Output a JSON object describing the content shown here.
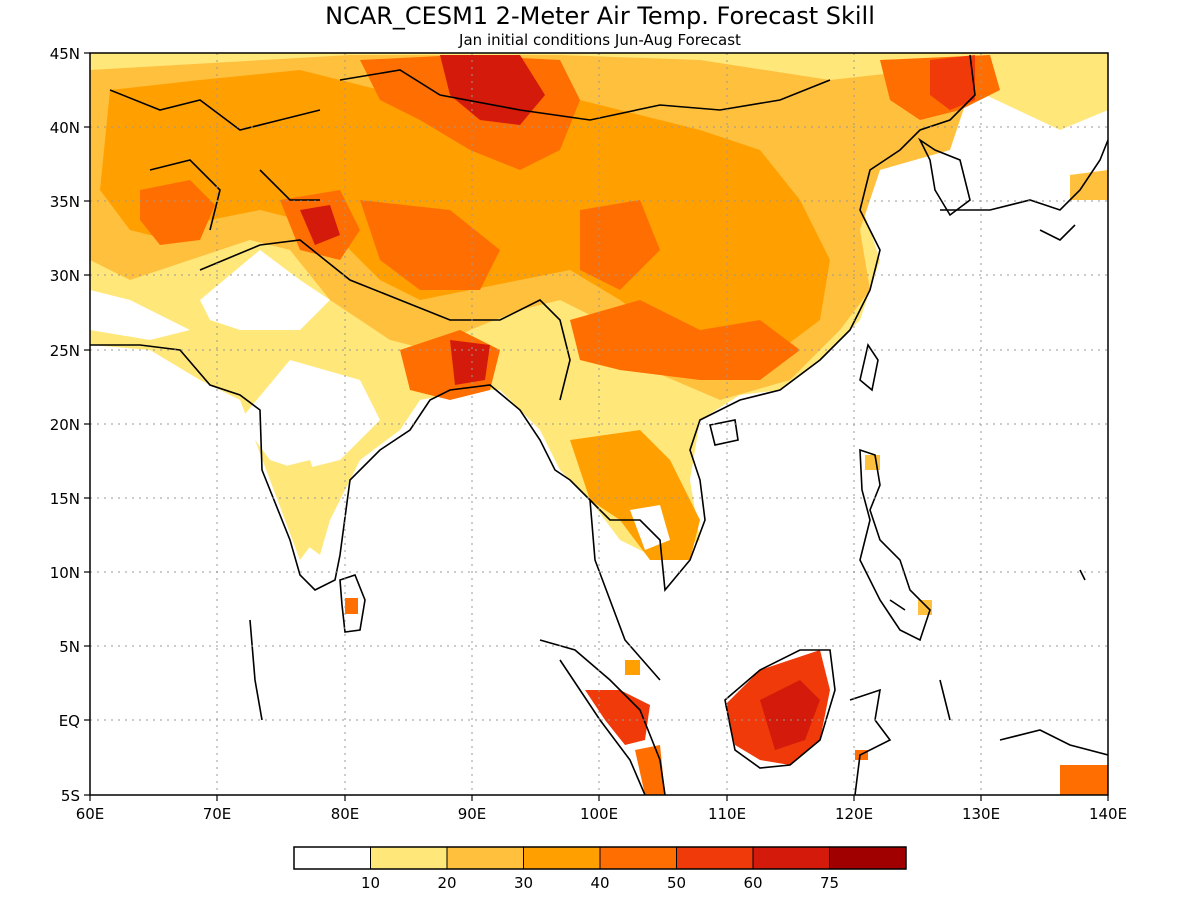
{
  "title": "NCAR_CESM1 2-Meter Air Temp. Forecast Skill",
  "subtitle": "Jan initial conditions  Jun-Aug Forecast",
  "map": {
    "lon_range": [
      60,
      140
    ],
    "lat_range": [
      -5,
      45
    ],
    "lon_ticks": [
      "60E",
      "70E",
      "80E",
      "90E",
      "100E",
      "110E",
      "120E",
      "130E",
      "140E"
    ],
    "lat_ticks": [
      "45N",
      "40N",
      "35N",
      "30N",
      "25N",
      "20N",
      "15N",
      "10N",
      "5N",
      "EQ",
      "5S"
    ],
    "grid": "dotted"
  },
  "colorbar": {
    "labels": [
      "10",
      "20",
      "30",
      "40",
      "50",
      "60",
      "75"
    ],
    "colors": [
      "#ffffff",
      "#ffe77a",
      "#ffc03e",
      "#ffa000",
      "#ff6e00",
      "#f03a0a",
      "#d41a0a",
      "#a00000"
    ]
  },
  "regions": [
    {
      "name": "central-asia",
      "fill": "#ffc03e"
    },
    {
      "name": "iran-plateau",
      "fill": "#ffa000"
    },
    {
      "name": "tibet-china",
      "fill": "#ffa000"
    },
    {
      "name": "mongolia-hotspot",
      "fill": "#d41a0a"
    },
    {
      "name": "himalaya-hotspot",
      "fill": "#d41a0a"
    },
    {
      "name": "bangladesh",
      "fill": "#ff6e00"
    },
    {
      "name": "north-india",
      "fill": "#ffe77a"
    },
    {
      "name": "indochina",
      "fill": "#ffa000"
    },
    {
      "name": "borneo",
      "fill": "#f03a0a"
    },
    {
      "name": "sumatra",
      "fill": "#f03a0a"
    },
    {
      "name": "new-guinea",
      "fill": "#ff6e00"
    }
  ]
}
